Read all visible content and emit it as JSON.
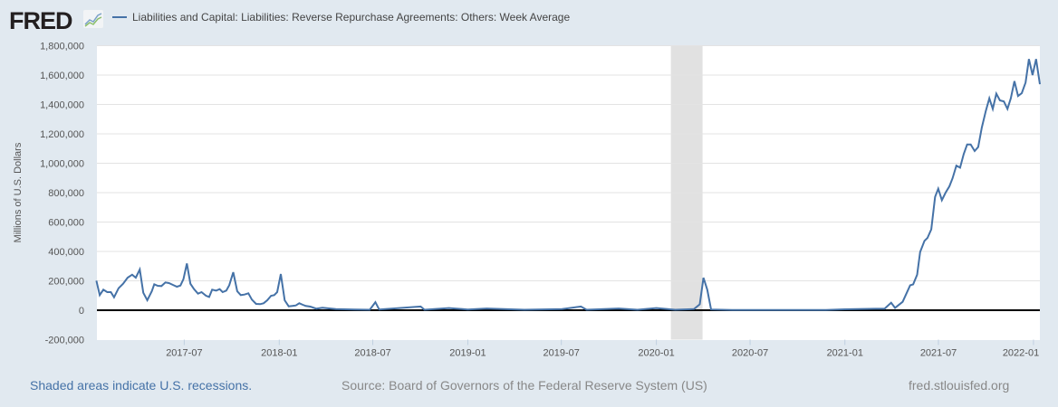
{
  "header": {
    "logo": "FRED",
    "legend_label": "Liabilities and Capital: Liabilities: Reverse Repurchase Agreements: Others: Week Average"
  },
  "footer": {
    "recession_note": "Shaded areas indicate U.S. recessions.",
    "source": "Source: Board of Governors of the Federal Reserve System (US)",
    "site": "fred.stlouisfed.org"
  },
  "colors": {
    "series": "#4572a7",
    "recession": "#e1e1e1",
    "background": "#e1e9f0"
  },
  "chart_data": {
    "type": "line",
    "title": "Liabilities and Capital: Liabilities: Reverse Repurchase Agreements: Others: Week Average",
    "xlabel": "",
    "ylabel": "Millions of U.S. Dollars",
    "ylim": [
      -200000,
      1800000
    ],
    "xlim": [
      2017.033,
      2022.034
    ],
    "grid": true,
    "yticks": [
      -200000,
      0,
      200000,
      400000,
      600000,
      800000,
      1000000,
      1200000,
      1400000,
      1600000,
      1800000
    ],
    "ytick_labels": [
      "-200,000",
      "0",
      "200,000",
      "400,000",
      "600,000",
      "800,000",
      "1,000,000",
      "1,200,000",
      "1,400,000",
      "1,600,000",
      "1,800,000"
    ],
    "xticks": [
      2017.496,
      2018.0,
      2018.496,
      2019.0,
      2019.496,
      2020.0,
      2020.497,
      2021.0,
      2021.496,
      2022.0
    ],
    "xtick_labels": [
      "2017-07",
      "2018-01",
      "2018-07",
      "2019-01",
      "2019-07",
      "2020-01",
      "2020-07",
      "2021-01",
      "2021-07",
      "2022-01"
    ],
    "recessions": [
      [
        2020.077,
        2020.245
      ]
    ],
    "series": [
      {
        "name": "Liabilities and Capital: Liabilities: Reverse Repurchase Agreements: Others: Week Average",
        "points": [
          [
            2017.03,
            201000
          ],
          [
            2017.048,
            102600
          ],
          [
            2017.067,
            139500
          ],
          [
            2017.088,
            123000
          ],
          [
            2017.107,
            123000
          ],
          [
            2017.124,
            88200
          ],
          [
            2017.148,
            149700
          ],
          [
            2017.172,
            180500
          ],
          [
            2017.196,
            221500
          ],
          [
            2017.22,
            242000
          ],
          [
            2017.239,
            221500
          ],
          [
            2017.26,
            276900
          ],
          [
            2017.279,
            119000
          ],
          [
            2017.3,
            67700
          ],
          [
            2017.324,
            129200
          ],
          [
            2017.337,
            176400
          ],
          [
            2017.356,
            166100
          ],
          [
            2017.375,
            164100
          ],
          [
            2017.396,
            188700
          ],
          [
            2017.415,
            184600
          ],
          [
            2017.436,
            172300
          ],
          [
            2017.457,
            160000
          ],
          [
            2017.476,
            168200
          ],
          [
            2017.492,
            211300
          ],
          [
            2017.51,
            317900
          ],
          [
            2017.529,
            180500
          ],
          [
            2017.548,
            143600
          ],
          [
            2017.569,
            112800
          ],
          [
            2017.588,
            123100
          ],
          [
            2017.612,
            98400
          ],
          [
            2017.628,
            90200
          ],
          [
            2017.644,
            139500
          ],
          [
            2017.665,
            133300
          ],
          [
            2017.684,
            143600
          ],
          [
            2017.7,
            123100
          ],
          [
            2017.719,
            133300
          ],
          [
            2017.735,
            170200
          ],
          [
            2017.756,
            258400
          ],
          [
            2017.777,
            129200
          ],
          [
            2017.796,
            102600
          ],
          [
            2017.815,
            106700
          ],
          [
            2017.836,
            114900
          ],
          [
            2017.855,
            71800
          ],
          [
            2017.877,
            43100
          ],
          [
            2017.898,
            41000
          ],
          [
            2017.917,
            47200
          ],
          [
            2017.936,
            67700
          ],
          [
            2017.957,
            98400
          ],
          [
            2017.973,
            102600
          ],
          [
            2017.989,
            123100
          ],
          [
            2018.008,
            246100
          ],
          [
            2018.029,
            67700
          ],
          [
            2018.05,
            26700
          ],
          [
            2018.069,
            28700
          ],
          [
            2018.088,
            32800
          ],
          [
            2018.106,
            47200
          ],
          [
            2018.125,
            36900
          ],
          [
            2018.141,
            28700
          ],
          [
            2018.165,
            24600
          ],
          [
            2018.197,
            10300
          ],
          [
            2018.229,
            16400
          ],
          [
            2018.3,
            8000
          ],
          [
            2018.4,
            5000
          ],
          [
            2018.48,
            3000
          ],
          [
            2018.51,
            55000
          ],
          [
            2018.53,
            5000
          ],
          [
            2018.75,
            25000
          ],
          [
            2018.77,
            3000
          ],
          [
            2018.9,
            15000
          ],
          [
            2019.0,
            5000
          ],
          [
            2019.1,
            12000
          ],
          [
            2019.3,
            3000
          ],
          [
            2019.5,
            8000
          ],
          [
            2019.6,
            25000
          ],
          [
            2019.63,
            3000
          ],
          [
            2019.8,
            12000
          ],
          [
            2019.9,
            3000
          ],
          [
            2020.0,
            15000
          ],
          [
            2020.1,
            3000
          ],
          [
            2020.2,
            8000
          ],
          [
            2020.23,
            40000
          ],
          [
            2020.25,
            221000
          ],
          [
            2020.27,
            140000
          ],
          [
            2020.29,
            5000
          ],
          [
            2020.4,
            2000
          ],
          [
            2020.7,
            1000
          ],
          [
            2020.9,
            1000
          ],
          [
            2021.0,
            6000
          ],
          [
            2021.162,
            10000
          ],
          [
            2021.21,
            10000
          ],
          [
            2021.245,
            51000
          ],
          [
            2021.266,
            16000
          ],
          [
            2021.306,
            57000
          ],
          [
            2021.346,
            170000
          ],
          [
            2021.362,
            176000
          ],
          [
            2021.383,
            242000
          ],
          [
            2021.399,
            396000
          ],
          [
            2021.422,
            472000
          ],
          [
            2021.438,
            492000
          ],
          [
            2021.458,
            550000
          ],
          [
            2021.478,
            771000
          ],
          [
            2021.495,
            827000
          ],
          [
            2021.514,
            749000
          ],
          [
            2021.534,
            800000
          ],
          [
            2021.554,
            843000
          ],
          [
            2021.571,
            898000
          ],
          [
            2021.591,
            984000
          ],
          [
            2021.611,
            970000
          ],
          [
            2021.63,
            1062000
          ],
          [
            2021.648,
            1128000
          ],
          [
            2021.667,
            1128000
          ],
          [
            2021.688,
            1083000
          ],
          [
            2021.707,
            1110000
          ],
          [
            2021.726,
            1243000
          ],
          [
            2021.747,
            1356000
          ],
          [
            2021.766,
            1442000
          ],
          [
            2021.784,
            1370000
          ],
          [
            2021.803,
            1473000
          ],
          [
            2021.822,
            1428000
          ],
          [
            2021.843,
            1421000
          ],
          [
            2021.862,
            1370000
          ],
          [
            2021.88,
            1442000
          ],
          [
            2021.899,
            1559000
          ],
          [
            2021.918,
            1458000
          ],
          [
            2021.938,
            1477000
          ],
          [
            2021.958,
            1549000
          ],
          [
            2021.976,
            1709000
          ],
          [
            2021.995,
            1600000
          ],
          [
            2022.014,
            1709000
          ],
          [
            2022.034,
            1538000
          ]
        ]
      }
    ]
  }
}
